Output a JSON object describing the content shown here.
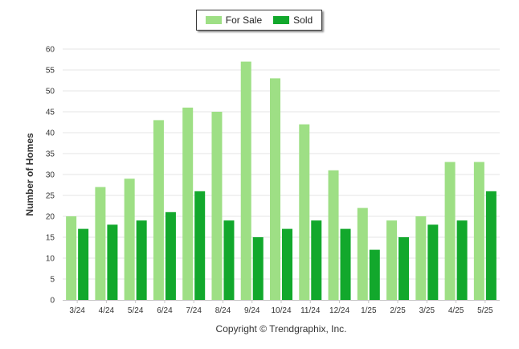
{
  "legend": {
    "position": "top-center",
    "items": [
      {
        "label": "For Sale",
        "color": "#9edf85"
      },
      {
        "label": "Sold",
        "color": "#12a82c"
      }
    ]
  },
  "copyright": "Copyright © Trendgraphix, Inc.",
  "chart_data": {
    "type": "bar",
    "ylabel": "Number of Homes",
    "xlabel": "",
    "ylim": [
      0,
      60
    ],
    "yticks": [
      0,
      5,
      10,
      15,
      20,
      25,
      30,
      35,
      40,
      45,
      50,
      55,
      60
    ],
    "grid": true,
    "categories": [
      "3/24",
      "4/24",
      "5/24",
      "6/24",
      "7/24",
      "8/24",
      "9/24",
      "10/24",
      "11/24",
      "12/24",
      "1/25",
      "2/25",
      "3/25",
      "4/25",
      "5/25"
    ],
    "series": [
      {
        "name": "For Sale",
        "color": "#9edf85",
        "values": [
          20,
          27,
          29,
          43,
          46,
          45,
          57,
          53,
          42,
          31,
          22,
          19,
          20,
          33,
          33
        ]
      },
      {
        "name": "Sold",
        "color": "#12a82c",
        "values": [
          17,
          18,
          19,
          21,
          26,
          19,
          15,
          17,
          19,
          17,
          12,
          15,
          18,
          19,
          26
        ]
      }
    ]
  }
}
